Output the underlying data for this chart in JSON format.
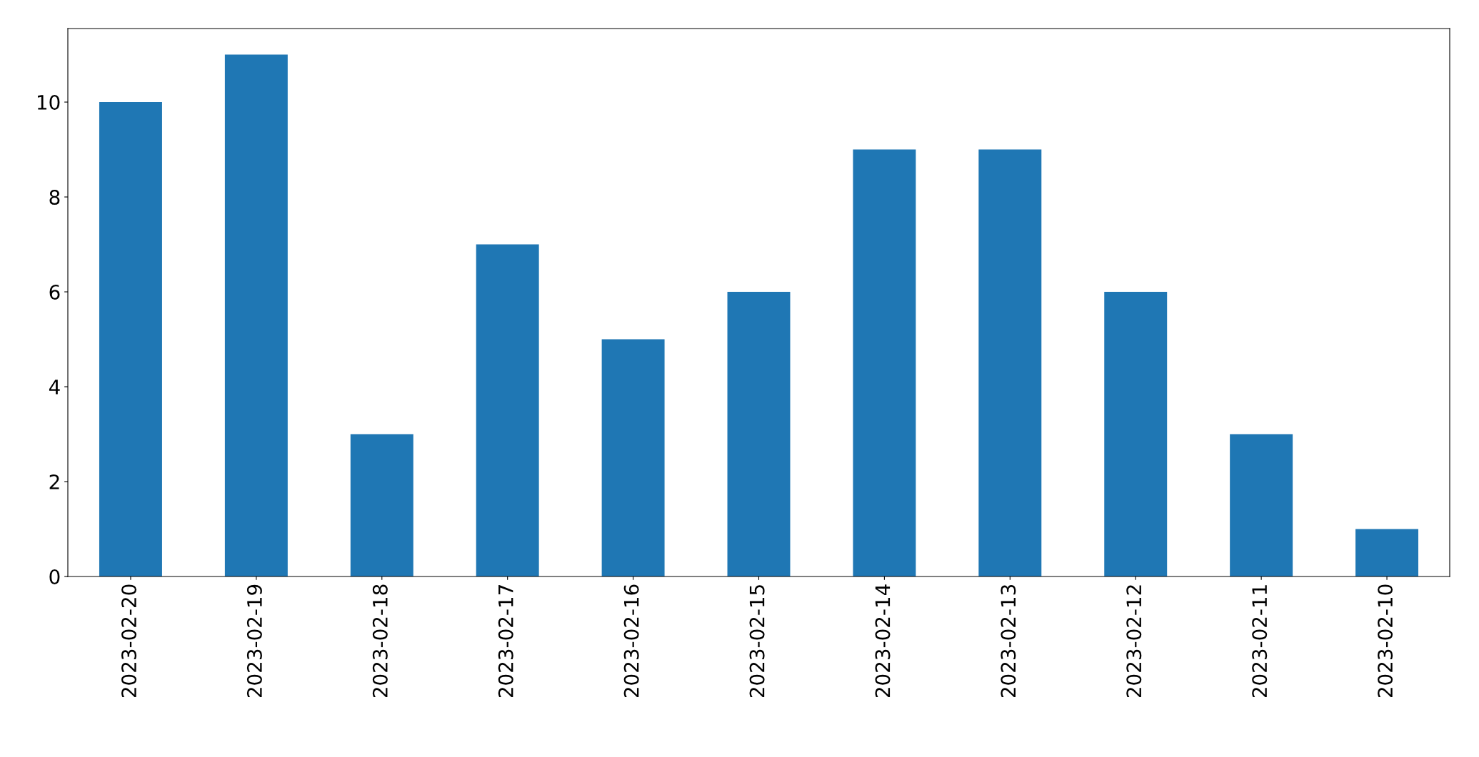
{
  "chart_data": {
    "type": "bar",
    "categories": [
      "2023-02-20",
      "2023-02-19",
      "2023-02-18",
      "2023-02-17",
      "2023-02-16",
      "2023-02-15",
      "2023-02-14",
      "2023-02-13",
      "2023-02-12",
      "2023-02-11",
      "2023-02-10"
    ],
    "values": [
      10,
      11,
      3,
      7,
      5,
      6,
      9,
      9,
      6,
      3,
      1
    ],
    "color": "#1f77b4",
    "ylim": [
      0,
      11.55
    ],
    "yticks": [
      0,
      2,
      4,
      6,
      8,
      10
    ],
    "grid": false,
    "legend": false
  }
}
